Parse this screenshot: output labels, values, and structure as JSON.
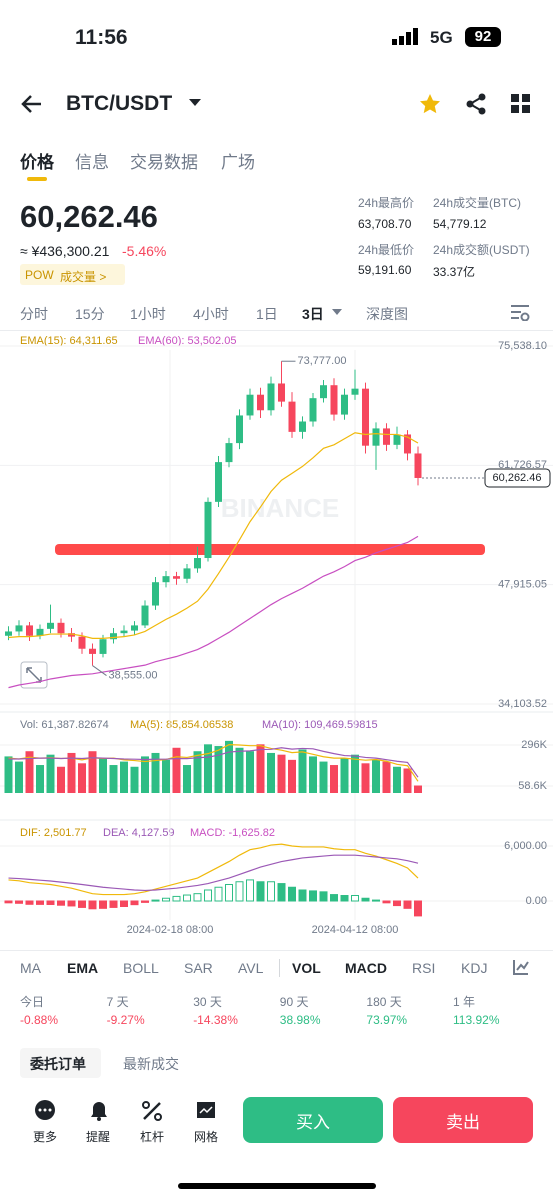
{
  "status_bar": {
    "time": "11:56",
    "network": "5G",
    "battery": "92"
  },
  "header": {
    "pair": "BTC/USDT"
  },
  "tabs": [
    "价格",
    "信息",
    "交易数据",
    "广场"
  ],
  "price": {
    "last": "60,262.46",
    "cny": "≈ ¥436,300.21",
    "change": "-5.46%",
    "tag": "POW",
    "tag_link": "成交量 >"
  },
  "stats": [
    {
      "label": "24h最高价",
      "value": "63,708.70"
    },
    {
      "label": "24h成交量(BTC)",
      "value": "54,779.12"
    },
    {
      "label": "24h最低价",
      "value": "59,191.60"
    },
    {
      "label": "24h成交额(USDT)",
      "value": "33.37亿"
    }
  ],
  "intervals": [
    "分时",
    "15分",
    "1小时",
    "4小时",
    "1日",
    "3日",
    "深度图"
  ],
  "chart": {
    "type": "candlestick",
    "watermark": "BINANCE",
    "up_color": "#2ebd85",
    "down_color": "#f6465d",
    "ema_legend": [
      "EMA(15): 64,311.65",
      "EMA(60): 53,502.05"
    ],
    "ylim": [
      34103.52,
      75538.1
    ],
    "yticks": [
      {
        "value": 75538.1,
        "label": "75,538.10"
      },
      {
        "value": 61726.57,
        "label": "61,726.57"
      },
      {
        "value": 47915.05,
        "label": "47,915.05"
      },
      {
        "value": 34103.52,
        "label": "34,103.52"
      }
    ],
    "last_label": "60,262.46",
    "high_label": "73,777.00",
    "low_label": "38,555.00",
    "candles": [
      [
        42000,
        43100,
        41500,
        42500
      ],
      [
        42500,
        43800,
        42000,
        43200
      ],
      [
        43200,
        43600,
        41400,
        42000
      ],
      [
        42000,
        43300,
        41600,
        42800
      ],
      [
        42800,
        45600,
        42300,
        43500
      ],
      [
        43500,
        44000,
        41800,
        42300
      ],
      [
        42300,
        42900,
        41300,
        41900
      ],
      [
        41900,
        42400,
        39900,
        40500
      ],
      [
        40500,
        41100,
        38555,
        39900
      ],
      [
        39900,
        42100,
        39500,
        41600
      ],
      [
        41600,
        42900,
        41100,
        42300
      ],
      [
        42300,
        43200,
        41900,
        42600
      ],
      [
        42600,
        43700,
        42100,
        43200
      ],
      [
        43200,
        46100,
        42900,
        45500
      ],
      [
        45500,
        48800,
        45000,
        48200
      ],
      [
        48200,
        49500,
        47600,
        48900
      ],
      [
        48900,
        49400,
        47900,
        48600
      ],
      [
        48600,
        50300,
        48100,
        49800
      ],
      [
        49800,
        52300,
        49300,
        51000
      ],
      [
        51000,
        58000,
        50600,
        57500
      ],
      [
        57500,
        62800,
        56900,
        62100
      ],
      [
        62100,
        64900,
        61500,
        64300
      ],
      [
        64300,
        68200,
        63600,
        67500
      ],
      [
        67500,
        70600,
        67000,
        69900
      ],
      [
        69900,
        70700,
        67200,
        68100
      ],
      [
        68100,
        72000,
        67500,
        71200
      ],
      [
        71200,
        73777,
        68500,
        69100
      ],
      [
        69100,
        70200,
        64900,
        65600
      ],
      [
        65600,
        67400,
        64800,
        66800
      ],
      [
        66800,
        70100,
        66200,
        69500
      ],
      [
        69500,
        71600,
        69000,
        71000
      ],
      [
        71000,
        71800,
        66900,
        67600
      ],
      [
        67600,
        70600,
        67000,
        69900
      ],
      [
        69900,
        72800,
        69300,
        70600
      ],
      [
        70600,
        71300,
        63100,
        64000
      ],
      [
        64000,
        66700,
        61200,
        66000
      ],
      [
        66000,
        66600,
        63400,
        64100
      ],
      [
        64100,
        66200,
        63600,
        65300
      ],
      [
        65300,
        65800,
        62300,
        63100
      ],
      [
        63100,
        63900,
        59400,
        60262.46
      ]
    ],
    "lines": [
      {
        "name": "EMA(15)",
        "color": "#f0b90b",
        "values": [
          41800,
          41900,
          41900,
          42000,
          42200,
          42200,
          42200,
          42000,
          41700,
          41700,
          41800,
          41900,
          42100,
          42500,
          43200,
          43900,
          44500,
          45200,
          46000,
          47400,
          49200,
          51100,
          53100,
          55200,
          56900,
          58700,
          60000,
          60800,
          61600,
          62600,
          63700,
          64100,
          64800,
          65500,
          65300,
          65400,
          65300,
          65300,
          65000,
          64311.65
        ]
      },
      {
        "name": "EMA(60)",
        "color": "#c84fc1",
        "values": [
          36000,
          36300,
          36500,
          36700,
          37000,
          37200,
          37400,
          37500,
          37600,
          37800,
          38000,
          38200,
          38400,
          38600,
          39000,
          39300,
          39600,
          40000,
          40400,
          41000,
          41700,
          42400,
          43200,
          44000,
          44800,
          45600,
          46300,
          46900,
          47500,
          48200,
          48900,
          49400,
          50000,
          50700,
          51100,
          51600,
          52000,
          52400,
          52800,
          53502.05
        ]
      }
    ],
    "volume": {
      "legend": [
        "Vol: 61,387.82674",
        "MA(5): 85,854.06538",
        "MA(10): 109,469.59815"
      ],
      "ylim": [
        18000,
        325000
      ],
      "yticks": [
        {
          "value": 296000,
          "label": "296K"
        },
        {
          "value": 58600,
          "label": "58.6K"
        }
      ],
      "values": [
        230000,
        200000,
        260000,
        180000,
        240000,
        170000,
        250000,
        190000,
        260000,
        220000,
        180000,
        200000,
        170000,
        230000,
        250000,
        210000,
        280000,
        180000,
        260000,
        300000,
        290000,
        320000,
        280000,
        260000,
        300000,
        250000,
        240000,
        210000,
        270000,
        230000,
        200000,
        180000,
        220000,
        240000,
        190000,
        210000,
        200000,
        170000,
        160000,
        61387.82674
      ],
      "lines": [
        {
          "name": "MA(5)",
          "color": "#f0b90b",
          "values": [
            220000,
            215000,
            225000,
            220000,
            222000,
            218000,
            220000,
            210000,
            222000,
            218000,
            220000,
            210000,
            206000,
            200000,
            206000,
            212000,
            228000,
            224000,
            236000,
            246000,
            266000,
            298000,
            296000,
            292000,
            292000,
            276000,
            266000,
            252000,
            256000,
            242000,
            228000,
            220000,
            220000,
            214000,
            208000,
            212000,
            202000,
            184000,
            176000,
            85854.06538
          ]
        },
        {
          "name": "MA(10)",
          "color": "#9b59b6",
          "values": [
            215000,
            215000,
            218000,
            220000,
            220000,
            218000,
            220000,
            218000,
            222000,
            220000,
            218000,
            215000,
            214000,
            212000,
            214000,
            214000,
            218000,
            217000,
            222000,
            226000,
            237000,
            255000,
            260000,
            262000,
            270000,
            271000,
            280000,
            272000,
            276000,
            274000,
            259000,
            246000,
            235000,
            232000,
            224000,
            220000,
            211000,
            202000,
            195000,
            109469.59815
          ]
        }
      ]
    },
    "macd": {
      "legend": [
        "DIF: 2,501.77",
        "DEA: 4,127.59",
        "MACD: -1,625.82"
      ],
      "ylim": [
        -2618,
        8836
      ],
      "yticks": [
        {
          "value": 6000,
          "label": "6,000.00"
        },
        {
          "value": 0,
          "label": "0.00"
        }
      ],
      "values": [
        -200,
        -250,
        -360,
        -370,
        -380,
        -460,
        -540,
        -700,
        -850,
        -800,
        -700,
        -600,
        -400,
        -150,
        100,
        300,
        500,
        650,
        800,
        1200,
        1500,
        1800,
        2100,
        2300,
        2100,
        2100,
        1900,
        1500,
        1200,
        1100,
        1000,
        700,
        600,
        600,
        300,
        100,
        -200,
        -500,
        -800,
        -1625.82
      ],
      "lines": [
        {
          "name": "DIF",
          "color": "#f0b90b",
          "values": [
            2300,
            2200,
            2000,
            1900,
            1800,
            1600,
            1400,
            1100,
            800,
            700,
            700,
            700,
            800,
            1000,
            1300,
            1600,
            1900,
            2200,
            2500,
            3100,
            3700,
            4300,
            5000,
            5600,
            5800,
            6100,
            6200,
            6000,
            5900,
            5900,
            5900,
            5700,
            5600,
            5600,
            5200,
            4900,
            4500,
            4100,
            3600,
            2501.77
          ]
        },
        {
          "name": "DEA",
          "color": "#9b59b6",
          "values": [
            2500,
            2450,
            2360,
            2270,
            2180,
            2060,
            1940,
            1800,
            1650,
            1500,
            1400,
            1300,
            1200,
            1150,
            1200,
            1300,
            1400,
            1550,
            1700,
            1900,
            2200,
            2500,
            2900,
            3300,
            3700,
            4000,
            4300,
            4500,
            4700,
            4800,
            4900,
            5000,
            5000,
            5000,
            4900,
            4800,
            4700,
            4600,
            4400,
            4127.59
          ]
        }
      ]
    },
    "x_labels": [
      "2024-02-18 08:00",
      "2024-04-12 08:00"
    ]
  },
  "indicators": [
    "MA",
    "EMA",
    "BOLL",
    "SAR",
    "AVL",
    "VOL",
    "MACD",
    "RSI",
    "KDJ"
  ],
  "periods": [
    {
      "label": "今日",
      "value": "-0.88%"
    },
    {
      "label": "7 天",
      "value": "-9.27%"
    },
    {
      "label": "30 天",
      "value": "-14.38%"
    },
    {
      "label": "90 天",
      "value": "38.98%"
    },
    {
      "label": "180 天",
      "value": "73.97%"
    },
    {
      "label": "1 年",
      "value": "113.92%"
    }
  ],
  "order_tabs": [
    "委托订单",
    "最新成交"
  ],
  "actions": [
    "更多",
    "提醒",
    "杠杆",
    "网格"
  ],
  "buttons": {
    "buy": "买入",
    "sell": "卖出"
  }
}
